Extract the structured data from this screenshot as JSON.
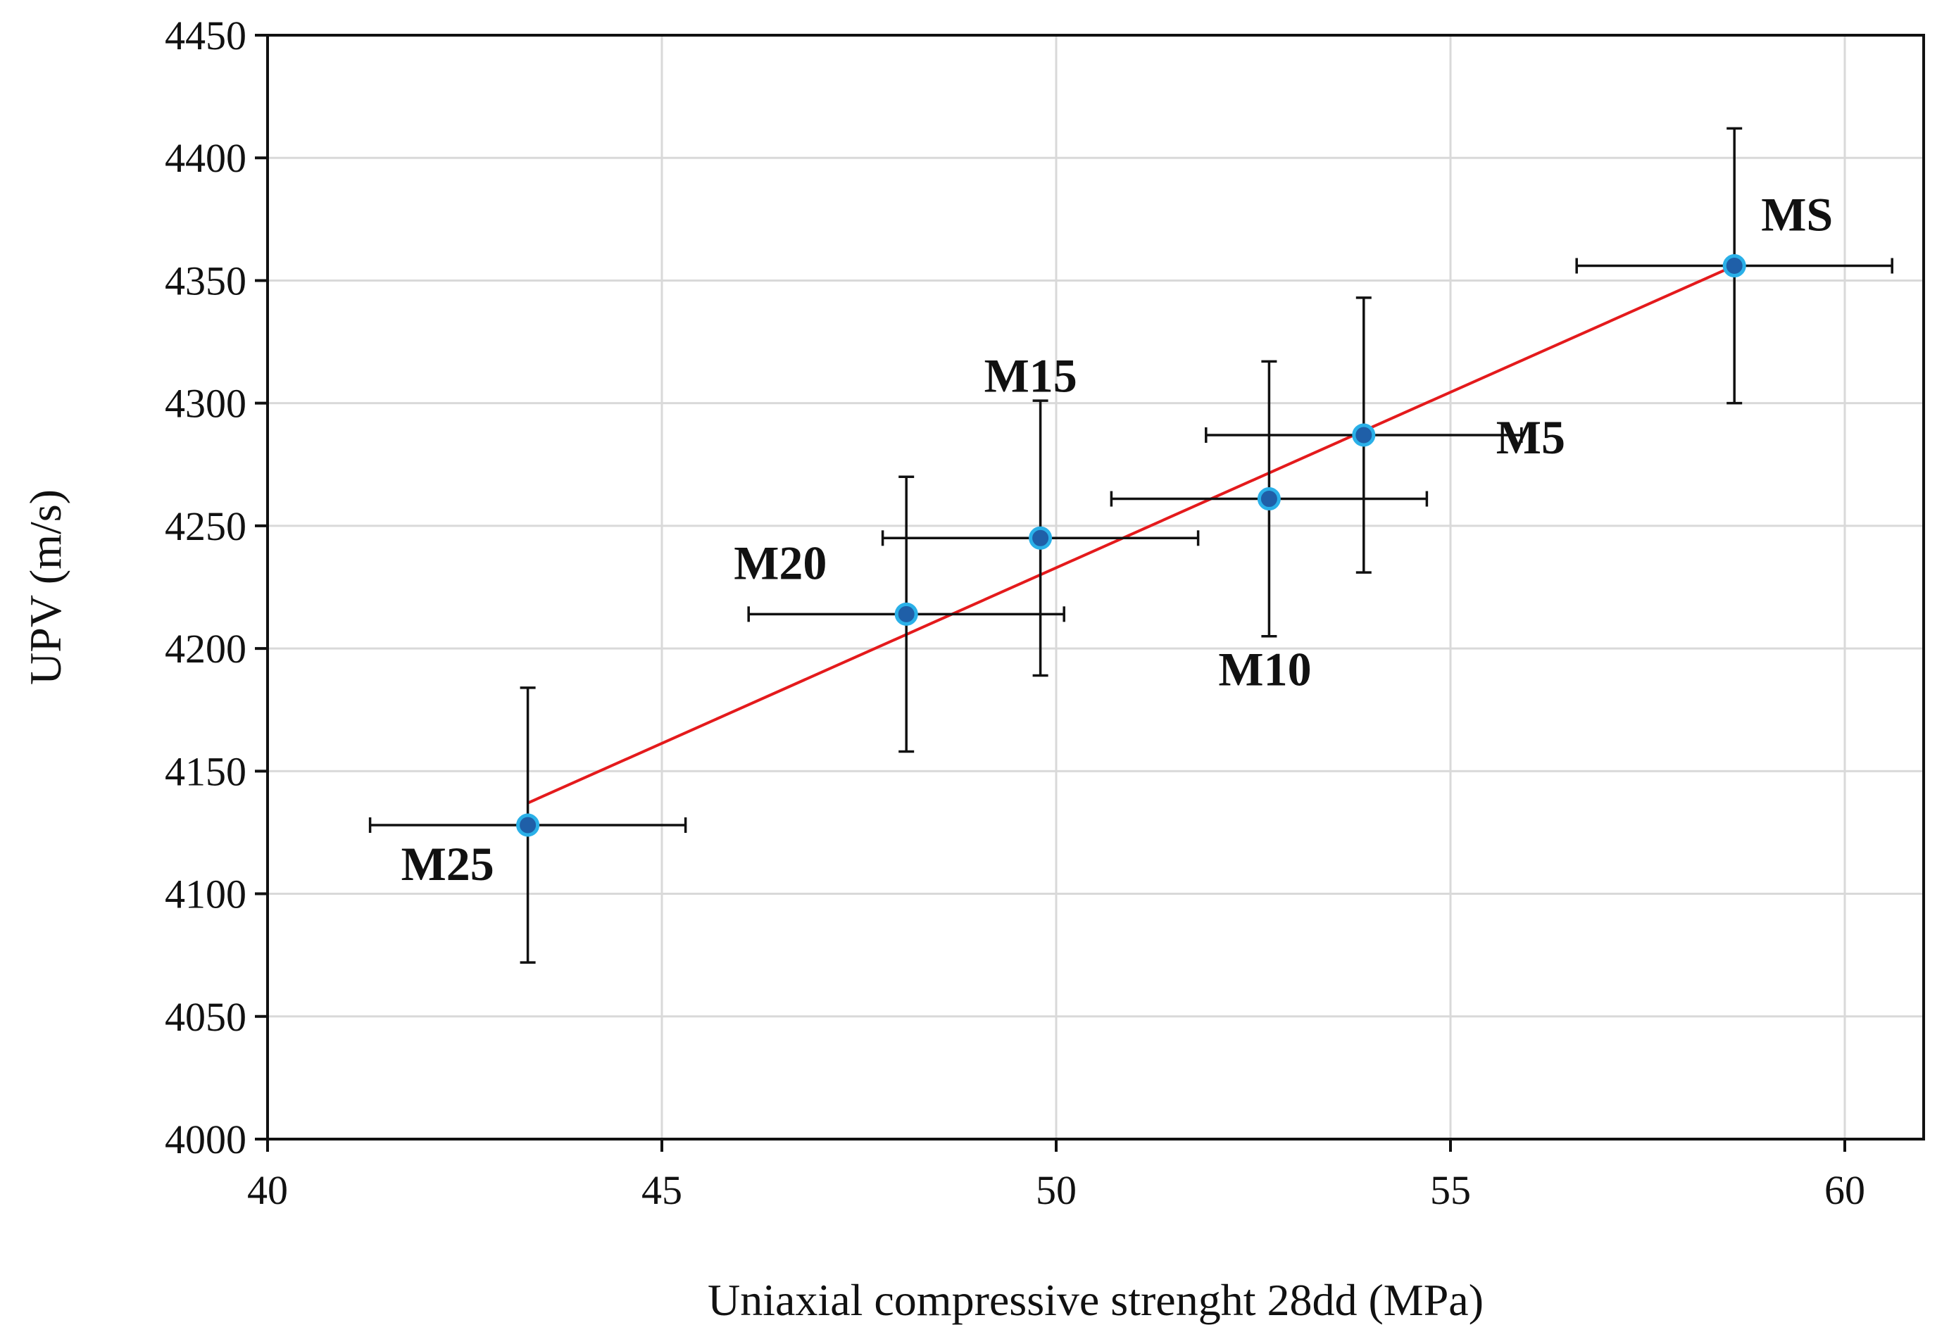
{
  "chart_data": {
    "type": "scatter",
    "title": "",
    "xlabel": "Uniaxial compressive strenght 28dd (MPa)",
    "ylabel": "UPV (m/s)",
    "xlim": [
      40,
      61
    ],
    "ylim": [
      4000,
      4450
    ],
    "xticks": [
      40,
      45,
      50,
      55,
      60
    ],
    "yticks": [
      4000,
      4050,
      4100,
      4150,
      4200,
      4250,
      4300,
      4350,
      4400,
      4450
    ],
    "grid": true,
    "colors": {
      "marker_fill": "#1f5fa8",
      "marker_edge": "#2ab0e8",
      "trendline": "#e41a1c"
    },
    "points": [
      {
        "label": "M25",
        "x": 43.3,
        "y": 4128,
        "xerr": 2.0,
        "yerr": 56
      },
      {
        "label": "M20",
        "x": 48.1,
        "y": 4214,
        "xerr": 2.0,
        "yerr": 56
      },
      {
        "label": "M15",
        "x": 49.8,
        "y": 4245,
        "xerr": 2.0,
        "yerr": 56
      },
      {
        "label": "M10",
        "x": 52.7,
        "y": 4261,
        "xerr": 2.0,
        "yerr": 56
      },
      {
        "label": "M5",
        "x": 53.9,
        "y": 4287,
        "xerr": 2.0,
        "yerr": 56
      },
      {
        "label": "MS",
        "x": 58.6,
        "y": 4356,
        "xerr": 2.0,
        "yerr": 56
      }
    ],
    "trendline": {
      "x0": 43.3,
      "y0": 4137,
      "x1": 58.6,
      "y1": 4356
    }
  }
}
